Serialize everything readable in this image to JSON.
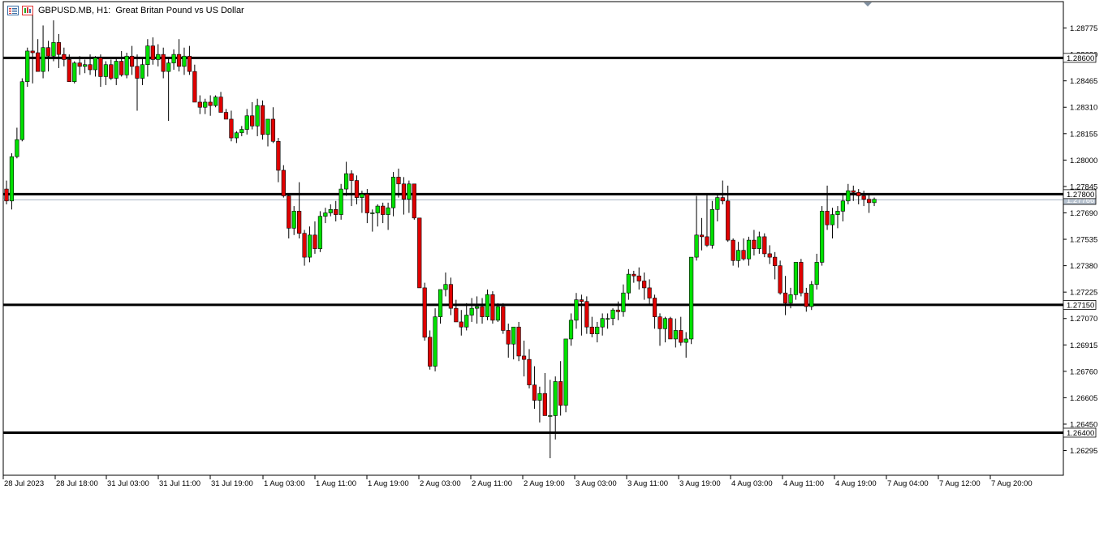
{
  "header": {
    "symbol_label": "GBPUSD.MB, H1:",
    "description": "Great Britan Pound vs US Dollar",
    "icons": [
      "window-list-icon",
      "chart-properties-icon"
    ]
  },
  "colors": {
    "bull": "#00e000",
    "bear": "#e00000",
    "wick": "#000000",
    "level_line": "#000000",
    "bid_line": "#a9b6c5",
    "background": "#ffffff"
  },
  "chart_data": {
    "type": "candlestick",
    "ylim": [
      1.2615,
      1.2893
    ],
    "y_ticks": [
      "1.28775",
      "1.28620",
      "1.28465",
      "1.28310",
      "1.28155",
      "1.28000",
      "1.27845",
      "1.27690",
      "1.27535",
      "1.27380",
      "1.27225",
      "1.27070",
      "1.26915",
      "1.26760",
      "1.26605",
      "1.26450",
      "1.26295"
    ],
    "x_ticks": [
      "28 Jul 2023",
      "28 Jul 18:00",
      "31 Jul 03:00",
      "31 Jul 11:00",
      "31 Jul 19:00",
      "1 Aug 03:00",
      "1 Aug 11:00",
      "1 Aug 19:00",
      "2 Aug 03:00",
      "2 Aug 11:00",
      "2 Aug 19:00",
      "3 Aug 03:00",
      "3 Aug 11:00",
      "3 Aug 19:00",
      "4 Aug 03:00",
      "4 Aug 11:00",
      "4 Aug 19:00",
      "7 Aug 04:00",
      "7 Aug 12:00",
      "7 Aug 20:00"
    ],
    "levels": [
      {
        "value": 1.286,
        "label": "1.28600"
      },
      {
        "value": 1.278,
        "label": "1.27800"
      },
      {
        "value": 1.2715,
        "label": "1.27150"
      },
      {
        "value": 1.264,
        "label": "1.26400"
      }
    ],
    "current_price": {
      "value": 1.27766,
      "label": "1.27766"
    },
    "candles": [
      [
        1.2783,
        1.2788,
        1.2774,
        1.2776
      ],
      [
        1.2776,
        1.2804,
        1.2771,
        1.2802
      ],
      [
        1.2802,
        1.2819,
        1.2801,
        1.2812
      ],
      [
        1.2812,
        1.2848,
        1.2811,
        1.2846
      ],
      [
        1.2846,
        1.2866,
        1.2843,
        1.2864
      ],
      [
        1.2864,
        1.2886,
        1.2845,
        1.2863
      ],
      [
        1.2863,
        1.2871,
        1.2852,
        1.2852
      ],
      [
        1.2852,
        1.2879,
        1.2848,
        1.2866
      ],
      [
        1.2866,
        1.287,
        1.2852,
        1.2861
      ],
      [
        1.2861,
        1.2882,
        1.2858,
        1.2869
      ],
      [
        1.2869,
        1.2874,
        1.2854,
        1.2862
      ],
      [
        1.2862,
        1.2866,
        1.2855,
        1.2859
      ],
      [
        1.2859,
        1.2862,
        1.2846,
        1.2846
      ],
      [
        1.2846,
        1.2858,
        1.2845,
        1.2857
      ],
      [
        1.2857,
        1.2861,
        1.285,
        1.2855
      ],
      [
        1.2855,
        1.2859,
        1.2851,
        1.2856
      ],
      [
        1.2856,
        1.2862,
        1.285,
        1.2853
      ],
      [
        1.2853,
        1.2861,
        1.2849,
        1.286
      ],
      [
        1.286,
        1.2862,
        1.2843,
        1.2849
      ],
      [
        1.2849,
        1.2858,
        1.2844,
        1.2856
      ],
      [
        1.2856,
        1.2859,
        1.2847,
        1.2848
      ],
      [
        1.2848,
        1.286,
        1.2844,
        1.2858
      ],
      [
        1.2858,
        1.2864,
        1.2849,
        1.285
      ],
      [
        1.285,
        1.2863,
        1.2848,
        1.2861
      ],
      [
        1.2861,
        1.2867,
        1.285,
        1.2855
      ],
      [
        1.2855,
        1.2862,
        1.2829,
        1.2848
      ],
      [
        1.2848,
        1.286,
        1.2844,
        1.2856
      ],
      [
        1.2856,
        1.2871,
        1.2849,
        1.2867
      ],
      [
        1.2867,
        1.2872,
        1.2856,
        1.2859
      ],
      [
        1.2859,
        1.2868,
        1.2855,
        1.2862
      ],
      [
        1.2862,
        1.2866,
        1.2848,
        1.2852
      ],
      [
        1.2852,
        1.286,
        1.2823,
        1.2857
      ],
      [
        1.2857,
        1.2865,
        1.2853,
        1.2862
      ],
      [
        1.2862,
        1.2871,
        1.2852,
        1.2855
      ],
      [
        1.2855,
        1.2866,
        1.285,
        1.2861
      ],
      [
        1.2861,
        1.2867,
        1.285,
        1.2852
      ],
      [
        1.2852,
        1.2856,
        1.2834,
        1.2834
      ],
      [
        1.2834,
        1.2838,
        1.2827,
        1.2831
      ],
      [
        1.2831,
        1.2836,
        1.2827,
        1.2834
      ],
      [
        1.2834,
        1.2838,
        1.2826,
        1.2832
      ],
      [
        1.2832,
        1.2838,
        1.2831,
        1.2837
      ],
      [
        1.2837,
        1.284,
        1.2828,
        1.2828
      ],
      [
        1.2828,
        1.283,
        1.2824,
        1.2824
      ],
      [
        1.2824,
        1.2829,
        1.2811,
        1.2813
      ],
      [
        1.2813,
        1.2817,
        1.281,
        1.2816
      ],
      [
        1.2816,
        1.282,
        1.2814,
        1.2818
      ],
      [
        1.2818,
        1.283,
        1.2815,
        1.2826
      ],
      [
        1.2826,
        1.2834,
        1.2818,
        1.282
      ],
      [
        1.282,
        1.2836,
        1.2814,
        1.2832
      ],
      [
        1.2832,
        1.2835,
        1.2812,
        1.2815
      ],
      [
        1.2815,
        1.2823,
        1.2808,
        1.2824
      ],
      [
        1.2824,
        1.2831,
        1.281,
        1.2811
      ],
      [
        1.2811,
        1.2813,
        1.2787,
        1.2794
      ],
      [
        1.2794,
        1.2797,
        1.2778,
        1.2779
      ],
      [
        1.2779,
        1.278,
        1.2754,
        1.276
      ],
      [
        1.276,
        1.2773,
        1.2756,
        1.277
      ],
      [
        1.277,
        1.2787,
        1.2754,
        1.2757
      ],
      [
        1.2757,
        1.2759,
        1.2738,
        1.2743
      ],
      [
        1.2743,
        1.2761,
        1.274,
        1.2756
      ],
      [
        1.2756,
        1.2764,
        1.2745,
        1.2748
      ],
      [
        1.2748,
        1.277,
        1.2746,
        1.2767
      ],
      [
        1.2767,
        1.2772,
        1.2763,
        1.2769
      ],
      [
        1.2769,
        1.2774,
        1.2767,
        1.2771
      ],
      [
        1.2771,
        1.2776,
        1.2764,
        1.2768
      ],
      [
        1.2768,
        1.2786,
        1.2765,
        1.2783
      ],
      [
        1.2783,
        1.2799,
        1.2779,
        1.2792
      ],
      [
        1.2792,
        1.2794,
        1.2773,
        1.2788
      ],
      [
        1.2788,
        1.2791,
        1.2774,
        1.2778
      ],
      [
        1.2778,
        1.2782,
        1.2769,
        1.278
      ],
      [
        1.278,
        1.2783,
        1.2763,
        1.2769
      ],
      [
        1.2769,
        1.2771,
        1.2758,
        1.2769
      ],
      [
        1.2769,
        1.2774,
        1.2761,
        1.2773
      ],
      [
        1.2773,
        1.2775,
        1.2763,
        1.2768
      ],
      [
        1.2768,
        1.2775,
        1.2759,
        1.2772
      ],
      [
        1.2772,
        1.2793,
        1.2767,
        1.279
      ],
      [
        1.279,
        1.2795,
        1.2778,
        1.2786
      ],
      [
        1.2786,
        1.279,
        1.2768,
        1.2777
      ],
      [
        1.2777,
        1.2788,
        1.2769,
        1.2786
      ],
      [
        1.2786,
        1.2786,
        1.2765,
        1.2766
      ],
      [
        1.2766,
        1.2766,
        1.2725,
        1.2725
      ],
      [
        1.2725,
        1.2728,
        1.2694,
        1.2696
      ],
      [
        1.2696,
        1.27,
        1.2677,
        1.2679
      ],
      [
        1.2679,
        1.2713,
        1.2676,
        1.2708
      ],
      [
        1.2708,
        1.2723,
        1.2704,
        1.2724
      ],
      [
        1.2724,
        1.2734,
        1.272,
        1.2727
      ],
      [
        1.2727,
        1.2731,
        1.2709,
        1.2713
      ],
      [
        1.2713,
        1.2718,
        1.2705,
        1.2705
      ],
      [
        1.2705,
        1.2712,
        1.2697,
        1.2702
      ],
      [
        1.2702,
        1.2716,
        1.27,
        1.2709
      ],
      [
        1.2709,
        1.2719,
        1.2705,
        1.2713
      ],
      [
        1.2713,
        1.272,
        1.2704,
        1.2714
      ],
      [
        1.2714,
        1.2719,
        1.2704,
        1.2708
      ],
      [
        1.2708,
        1.2724,
        1.2706,
        1.2721
      ],
      [
        1.2721,
        1.2723,
        1.2704,
        1.2706
      ],
      [
        1.2706,
        1.2716,
        1.2705,
        1.2714
      ],
      [
        1.2714,
        1.2716,
        1.2698,
        1.27
      ],
      [
        1.27,
        1.2704,
        1.2684,
        1.2692
      ],
      [
        1.2692,
        1.2702,
        1.2683,
        1.2702
      ],
      [
        1.2702,
        1.2705,
        1.2682,
        1.2685
      ],
      [
        1.2685,
        1.2694,
        1.2673,
        1.2683
      ],
      [
        1.2683,
        1.2689,
        1.2666,
        1.2668
      ],
      [
        1.2668,
        1.2679,
        1.2654,
        1.2659
      ],
      [
        1.2659,
        1.2667,
        1.2646,
        1.2663
      ],
      [
        1.2663,
        1.2675,
        1.265,
        1.265
      ],
      [
        1.265,
        1.2671,
        1.2625,
        1.265
      ],
      [
        1.265,
        1.2673,
        1.2636,
        1.267
      ],
      [
        1.267,
        1.2682,
        1.265,
        1.2656
      ],
      [
        1.2656,
        1.2695,
        1.2652,
        1.2695
      ],
      [
        1.2695,
        1.271,
        1.2691,
        1.2706
      ],
      [
        1.2706,
        1.2722,
        1.2701,
        1.2718
      ],
      [
        1.2718,
        1.2721,
        1.2697,
        1.2717
      ],
      [
        1.2717,
        1.272,
        1.2698,
        1.2702
      ],
      [
        1.2702,
        1.2708,
        1.2696,
        1.2698
      ],
      [
        1.2698,
        1.2705,
        1.2693,
        1.2702
      ],
      [
        1.2702,
        1.271,
        1.2697,
        1.2707
      ],
      [
        1.2707,
        1.271,
        1.2701,
        1.2707
      ],
      [
        1.2707,
        1.2713,
        1.2703,
        1.2712
      ],
      [
        1.2712,
        1.2717,
        1.2706,
        1.2711
      ],
      [
        1.2711,
        1.2727,
        1.2708,
        1.2722
      ],
      [
        1.2722,
        1.2736,
        1.2718,
        1.2733
      ],
      [
        1.2733,
        1.2735,
        1.2728,
        1.2732
      ],
      [
        1.2732,
        1.2737,
        1.2724,
        1.2729
      ],
      [
        1.2729,
        1.2734,
        1.2718,
        1.2725
      ],
      [
        1.2725,
        1.273,
        1.2715,
        1.2719
      ],
      [
        1.2719,
        1.2721,
        1.2701,
        1.2708
      ],
      [
        1.2708,
        1.271,
        1.2691,
        1.2701
      ],
      [
        1.2701,
        1.2708,
        1.2693,
        1.2707
      ],
      [
        1.2707,
        1.2708,
        1.2695,
        1.2695
      ],
      [
        1.2695,
        1.2707,
        1.269,
        1.27
      ],
      [
        1.27,
        1.2708,
        1.2691,
        1.2693
      ],
      [
        1.2693,
        1.2699,
        1.2684,
        1.2695
      ],
      [
        1.2695,
        1.2743,
        1.2692,
        1.2743
      ],
      [
        1.2743,
        1.2779,
        1.2741,
        1.2756
      ],
      [
        1.2756,
        1.2766,
        1.2747,
        1.2755
      ],
      [
        1.2755,
        1.278,
        1.2749,
        1.275
      ],
      [
        1.275,
        1.2776,
        1.2748,
        1.2771
      ],
      [
        1.2771,
        1.278,
        1.2764,
        1.2778
      ],
      [
        1.2778,
        1.2788,
        1.2774,
        1.2776
      ],
      [
        1.2776,
        1.2785,
        1.2752,
        1.2753
      ],
      [
        1.2753,
        1.2754,
        1.2738,
        1.2741
      ],
      [
        1.2741,
        1.2752,
        1.2737,
        1.2747
      ],
      [
        1.2747,
        1.2754,
        1.2741,
        1.2742
      ],
      [
        1.2742,
        1.2755,
        1.2738,
        1.2753
      ],
      [
        1.2753,
        1.2759,
        1.2744,
        1.2748
      ],
      [
        1.2748,
        1.2758,
        1.2745,
        1.2755
      ],
      [
        1.2755,
        1.2757,
        1.2743,
        1.2745
      ],
      [
        1.2745,
        1.275,
        1.2739,
        1.2743
      ],
      [
        1.2743,
        1.2746,
        1.273,
        1.2738
      ],
      [
        1.2738,
        1.2741,
        1.2721,
        1.2722
      ],
      [
        1.2722,
        1.2732,
        1.2709,
        1.2716
      ],
      [
        1.2716,
        1.2725,
        1.2713,
        1.2721
      ],
      [
        1.2721,
        1.274,
        1.2718,
        1.274
      ],
      [
        1.274,
        1.2742,
        1.272,
        1.2722
      ],
      [
        1.2722,
        1.2725,
        1.2711,
        1.2714
      ],
      [
        1.2714,
        1.2729,
        1.2712,
        1.2727
      ],
      [
        1.2727,
        1.2745,
        1.2724,
        1.274
      ],
      [
        1.274,
        1.2773,
        1.2738,
        1.277
      ],
      [
        1.277,
        1.2785,
        1.2759,
        1.2762
      ],
      [
        1.2762,
        1.2772,
        1.2754,
        1.2768
      ],
      [
        1.2768,
        1.2773,
        1.276,
        1.277
      ],
      [
        1.277,
        1.278,
        1.2764,
        1.2776
      ],
      [
        1.2776,
        1.2786,
        1.2774,
        1.2782
      ],
      [
        1.2782,
        1.2785,
        1.2776,
        1.2781
      ],
      [
        1.2781,
        1.2783,
        1.2774,
        1.2779
      ],
      [
        1.2779,
        1.2782,
        1.2773,
        1.2777
      ],
      [
        1.2777,
        1.278,
        1.2769,
        1.2775
      ],
      [
        1.2775,
        1.2778,
        1.2773,
        1.2777
      ]
    ]
  }
}
